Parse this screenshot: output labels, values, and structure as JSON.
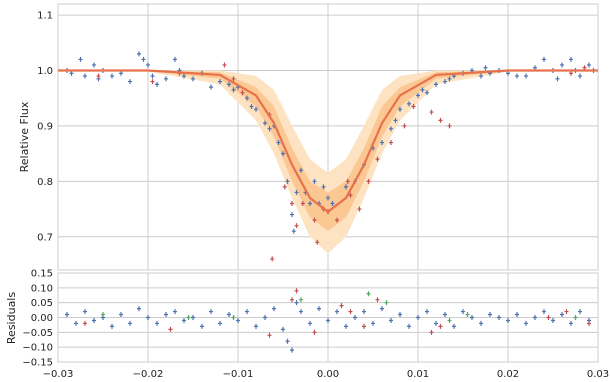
{
  "chart_data": [
    {
      "type": "line",
      "ylabel": "Relative Flux",
      "xlim": [
        -0.03,
        0.03
      ],
      "ylim": [
        0.64,
        1.12
      ],
      "yticks": [
        "0.7",
        "0.8",
        "0.9",
        "1.0",
        "1.1"
      ],
      "ytick_values": [
        0.7,
        0.8,
        0.9,
        1.0,
        1.1
      ],
      "xticks": [
        -0.03,
        -0.02,
        -0.01,
        0.0,
        0.01,
        0.02,
        0.03
      ],
      "grid": true,
      "model_curve": {
        "x": [
          -0.03,
          -0.02,
          -0.012,
          -0.008,
          -0.006,
          -0.004,
          -0.002,
          0.0,
          0.002,
          0.004,
          0.006,
          0.008,
          0.012,
          0.02,
          0.03
        ],
        "y": [
          1.0,
          1.0,
          0.992,
          0.955,
          0.905,
          0.83,
          0.77,
          0.745,
          0.77,
          0.83,
          0.905,
          0.955,
          0.992,
          1.0,
          1.0
        ]
      },
      "confidence_band_outer": {
        "x": [
          -0.03,
          -0.02,
          -0.012,
          -0.008,
          -0.006,
          -0.004,
          -0.002,
          0.0,
          0.002,
          0.004,
          0.006,
          0.008,
          0.012,
          0.02,
          0.03
        ],
        "low": [
          1.0,
          0.998,
          0.975,
          0.91,
          0.85,
          0.77,
          0.7,
          0.67,
          0.7,
          0.77,
          0.85,
          0.91,
          0.975,
          0.998,
          1.0
        ],
        "high": [
          1.0,
          1.0,
          1.0,
          0.99,
          0.965,
          0.9,
          0.84,
          0.815,
          0.84,
          0.9,
          0.965,
          0.99,
          1.0,
          1.0,
          1.0
        ]
      },
      "confidence_band_inner": {
        "x": [
          -0.03,
          -0.02,
          -0.012,
          -0.008,
          -0.006,
          -0.004,
          -0.002,
          0.0,
          0.002,
          0.004,
          0.006,
          0.008,
          0.012,
          0.02,
          0.03
        ],
        "low": [
          1.0,
          0.999,
          0.985,
          0.935,
          0.88,
          0.8,
          0.735,
          0.71,
          0.735,
          0.8,
          0.88,
          0.935,
          0.985,
          0.999,
          1.0
        ],
        "high": [
          1.0,
          1.0,
          0.997,
          0.97,
          0.935,
          0.86,
          0.8,
          0.78,
          0.8,
          0.86,
          0.935,
          0.97,
          0.997,
          1.0,
          1.0
        ]
      },
      "series": [
        {
          "color": "#4c72b0",
          "points": [
            [
              -0.029,
              1.0
            ],
            [
              -0.0285,
              0.995
            ],
            [
              -0.0275,
              1.02
            ],
            [
              -0.027,
              0.99
            ],
            [
              -0.026,
              1.01
            ],
            [
              -0.0255,
              0.985
            ],
            [
              -0.025,
              1.0
            ],
            [
              -0.024,
              0.99
            ],
            [
              -0.023,
              0.995
            ],
            [
              -0.022,
              0.98
            ],
            [
              -0.021,
              1.03
            ],
            [
              -0.0205,
              1.02
            ],
            [
              -0.02,
              1.01
            ],
            [
              -0.0195,
              0.99
            ],
            [
              -0.019,
              0.975
            ],
            [
              -0.018,
              0.985
            ],
            [
              -0.017,
              1.02
            ],
            [
              -0.0165,
              1.0
            ],
            [
              -0.016,
              0.99
            ],
            [
              -0.015,
              0.985
            ],
            [
              -0.014,
              0.995
            ],
            [
              -0.013,
              0.97
            ],
            [
              -0.012,
              0.98
            ],
            [
              -0.011,
              0.975
            ],
            [
              -0.0105,
              0.965
            ],
            [
              -0.01,
              0.97
            ],
            [
              -0.009,
              0.95
            ],
            [
              -0.0085,
              0.935
            ],
            [
              -0.008,
              0.93
            ],
            [
              -0.007,
              0.905
            ],
            [
              -0.0065,
              0.895
            ],
            [
              -0.006,
              0.9
            ],
            [
              -0.0055,
              0.87
            ],
            [
              -0.005,
              0.85
            ],
            [
              -0.0045,
              0.8
            ],
            [
              -0.004,
              0.74
            ],
            [
              -0.0038,
              0.71
            ],
            [
              -0.0035,
              0.78
            ],
            [
              -0.003,
              0.82
            ],
            [
              -0.0025,
              0.78
            ],
            [
              -0.002,
              0.76
            ],
            [
              -0.0015,
              0.8
            ],
            [
              -0.001,
              0.76
            ],
            [
              -0.0005,
              0.79
            ],
            [
              0.0,
              0.77
            ],
            [
              0.0005,
              0.76
            ],
            [
              0.002,
              0.79
            ],
            [
              0.003,
              0.8
            ],
            [
              0.004,
              0.83
            ],
            [
              0.005,
              0.86
            ],
            [
              0.006,
              0.87
            ],
            [
              0.007,
              0.895
            ],
            [
              0.0075,
              0.91
            ],
            [
              0.008,
              0.93
            ],
            [
              0.009,
              0.94
            ],
            [
              0.01,
              0.955
            ],
            [
              0.0105,
              0.965
            ],
            [
              0.011,
              0.96
            ],
            [
              0.012,
              0.975
            ],
            [
              0.013,
              0.98
            ],
            [
              0.0135,
              0.985
            ],
            [
              0.014,
              0.99
            ],
            [
              0.015,
              0.995
            ],
            [
              0.016,
              1.0
            ],
            [
              0.017,
              0.99
            ],
            [
              0.0175,
              1.005
            ],
            [
              0.018,
              0.995
            ],
            [
              0.019,
              1.0
            ],
            [
              0.02,
              0.995
            ],
            [
              0.021,
              0.99
            ],
            [
              0.022,
              0.99
            ],
            [
              0.023,
              1.005
            ],
            [
              0.024,
              1.02
            ],
            [
              0.025,
              1.0
            ],
            [
              0.0255,
              0.985
            ],
            [
              0.026,
              1.01
            ],
            [
              0.027,
              1.02
            ],
            [
              0.0275,
              1.0
            ],
            [
              0.028,
              0.99
            ],
            [
              0.029,
              1.01
            ],
            [
              0.0295,
              1.0
            ]
          ]
        },
        {
          "color": "#c44e52",
          "points": [
            [
              -0.0255,
              0.99
            ],
            [
              -0.0195,
              0.98
            ],
            [
              -0.0165,
              0.995
            ],
            [
              -0.0115,
              1.01
            ],
            [
              -0.0105,
              0.985
            ],
            [
              -0.0095,
              0.96
            ],
            [
              -0.0065,
              0.92
            ],
            [
              -0.0062,
              0.66
            ],
            [
              -0.0048,
              0.79
            ],
            [
              -0.004,
              0.76
            ],
            [
              -0.0035,
              0.72
            ],
            [
              -0.0028,
              0.76
            ],
            [
              -0.0015,
              0.73
            ],
            [
              -0.0012,
              0.69
            ],
            [
              -0.0005,
              0.75
            ],
            [
              0.0,
              0.745
            ],
            [
              0.001,
              0.73
            ],
            [
              0.0022,
              0.8
            ],
            [
              0.0025,
              0.775
            ],
            [
              0.0035,
              0.75
            ],
            [
              0.0045,
              0.8
            ],
            [
              0.0055,
              0.84
            ],
            [
              0.007,
              0.87
            ],
            [
              0.0085,
              0.9
            ],
            [
              0.0095,
              0.935
            ],
            [
              0.0115,
              0.925
            ],
            [
              0.0125,
              0.91
            ],
            [
              0.0135,
              0.9
            ],
            [
              0.027,
              0.995
            ],
            [
              0.0285,
              1.005
            ]
          ]
        }
      ]
    },
    {
      "type": "scatter",
      "ylabel": "Residuals",
      "xlim": [
        -0.03,
        0.03
      ],
      "ylim": [
        -0.15,
        0.15
      ],
      "yticks": [
        "0.15",
        "0.10",
        "0.05",
        "0.00",
        "−0.05",
        "−0.10",
        "−0.15"
      ],
      "ytick_values": [
        0.15,
        0.1,
        0.05,
        0.0,
        -0.05,
        -0.1,
        -0.15
      ],
      "xticks": [
        "−0.03",
        "−0.02",
        "−0.01",
        "0.00",
        "0.01",
        "0.02",
        "0.03"
      ],
      "xtick_values": [
        -0.03,
        -0.02,
        -0.01,
        0.0,
        0.01,
        0.02,
        0.03
      ],
      "grid": true,
      "series": [
        {
          "color": "#4c72b0",
          "points": [
            [
              -0.029,
              0.01
            ],
            [
              -0.028,
              -0.02
            ],
            [
              -0.027,
              0.02
            ],
            [
              -0.026,
              -0.01
            ],
            [
              -0.025,
              0.0
            ],
            [
              -0.024,
              -0.03
            ],
            [
              -0.023,
              0.01
            ],
            [
              -0.022,
              -0.02
            ],
            [
              -0.021,
              0.03
            ],
            [
              -0.02,
              0.0
            ],
            [
              -0.019,
              -0.02
            ],
            [
              -0.018,
              0.01
            ],
            [
              -0.017,
              0.02
            ],
            [
              -0.016,
              -0.01
            ],
            [
              -0.015,
              0.0
            ],
            [
              -0.014,
              -0.03
            ],
            [
              -0.013,
              0.02
            ],
            [
              -0.012,
              -0.02
            ],
            [
              -0.011,
              0.01
            ],
            [
              -0.01,
              -0.01
            ],
            [
              -0.009,
              0.02
            ],
            [
              -0.008,
              -0.03
            ],
            [
              -0.007,
              0.0
            ],
            [
              -0.006,
              0.03
            ],
            [
              -0.005,
              -0.04
            ],
            [
              -0.0045,
              -0.08
            ],
            [
              -0.004,
              -0.11
            ],
            [
              -0.0035,
              0.05
            ],
            [
              -0.003,
              0.02
            ],
            [
              -0.002,
              -0.02
            ],
            [
              -0.001,
              0.03
            ],
            [
              0.0,
              -0.01
            ],
            [
              0.001,
              0.02
            ],
            [
              0.002,
              -0.03
            ],
            [
              0.003,
              0.0
            ],
            [
              0.004,
              0.02
            ],
            [
              0.005,
              -0.02
            ],
            [
              0.006,
              0.03
            ],
            [
              0.007,
              -0.01
            ],
            [
              0.008,
              0.01
            ],
            [
              0.009,
              -0.03
            ],
            [
              0.01,
              0.0
            ],
            [
              0.011,
              0.02
            ],
            [
              0.012,
              -0.02
            ],
            [
              0.013,
              0.01
            ],
            [
              0.014,
              -0.03
            ],
            [
              0.015,
              0.02
            ],
            [
              0.016,
              0.0
            ],
            [
              0.017,
              -0.02
            ],
            [
              0.018,
              0.01
            ],
            [
              0.019,
              0.0
            ],
            [
              0.02,
              -0.01
            ],
            [
              0.021,
              0.01
            ],
            [
              0.022,
              -0.02
            ],
            [
              0.023,
              0.0
            ],
            [
              0.024,
              0.02
            ],
            [
              0.025,
              -0.01
            ],
            [
              0.026,
              0.01
            ],
            [
              0.027,
              -0.02
            ],
            [
              0.028,
              0.02
            ],
            [
              0.029,
              -0.01
            ]
          ]
        },
        {
          "color": "#c44e52",
          "points": [
            [
              -0.027,
              -0.02
            ],
            [
              -0.0175,
              -0.04
            ],
            [
              -0.0065,
              -0.06
            ],
            [
              -0.004,
              0.06
            ],
            [
              -0.0035,
              0.09
            ],
            [
              -0.0015,
              -0.05
            ],
            [
              0.0015,
              0.04
            ],
            [
              0.0025,
              0.02
            ],
            [
              0.004,
              -0.03
            ],
            [
              0.0055,
              0.06
            ],
            [
              0.0115,
              -0.05
            ],
            [
              0.0125,
              -0.03
            ],
            [
              0.0245,
              0.0
            ],
            [
              0.0265,
              0.02
            ],
            [
              0.029,
              -0.02
            ]
          ]
        },
        {
          "color": "#55a868",
          "points": [
            [
              -0.025,
              0.01
            ],
            [
              -0.0155,
              0.0
            ],
            [
              -0.0105,
              0.0
            ],
            [
              -0.003,
              0.06
            ],
            [
              0.0045,
              0.08
            ],
            [
              0.0065,
              0.05
            ],
            [
              0.0135,
              -0.01
            ],
            [
              0.0155,
              0.01
            ],
            [
              0.0275,
              0.0
            ]
          ]
        }
      ]
    }
  ]
}
